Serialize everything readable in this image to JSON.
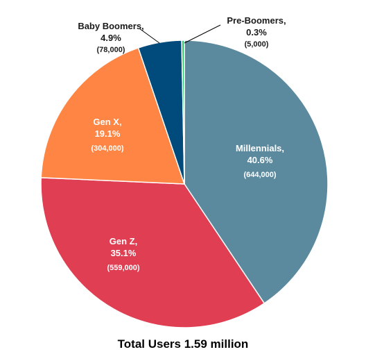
{
  "chart_data": {
    "type": "pie",
    "slices": [
      {
        "name": "Millennials,",
        "percent": "40.6%",
        "count": "(644,000)",
        "value": 40.6,
        "color": "#5b8a9e"
      },
      {
        "name": "Gen Z,",
        "percent": "35.1%",
        "count": "(559,000)",
        "value": 35.1,
        "color": "#e03e52"
      },
      {
        "name": "Gen X,",
        "percent": "19.1%",
        "count": "(304,000)",
        "value": 19.1,
        "color": "#fe8543"
      },
      {
        "name": "Baby Boomers,",
        "percent": "4.9%",
        "count": "(78,000)",
        "value": 4.9,
        "color": "#004a7c"
      },
      {
        "name": "Pre-Boomers,",
        "percent": "0.3%",
        "count": "(5,000)",
        "value": 0.3,
        "color": "#2ecc71"
      }
    ],
    "caption": "Total Users 1.59 million"
  }
}
